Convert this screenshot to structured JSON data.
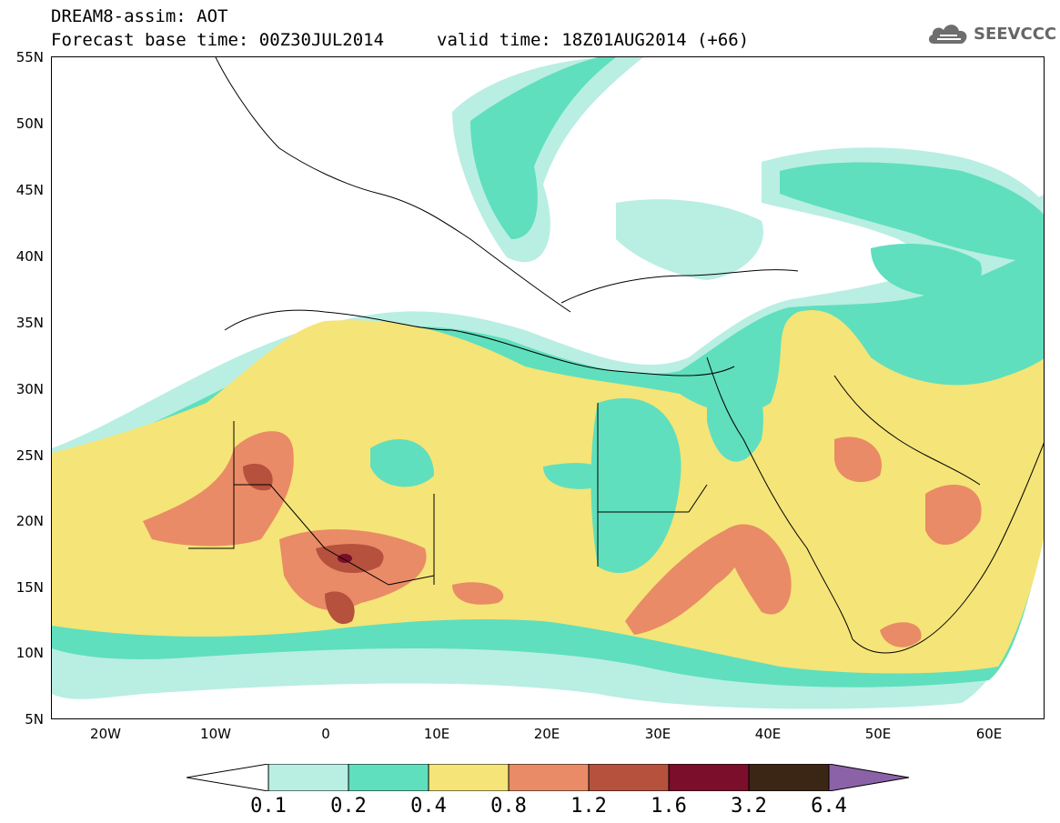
{
  "header": {
    "title": "DREAM8-assim: AOT",
    "base_time": "Forecast base time: 00Z30JUL2014",
    "valid_time": "valid time: 18Z01AUG2014 (+66)"
  },
  "logo": {
    "text": "SEEVCCC",
    "icon": "cloud-icon"
  },
  "axes": {
    "lat_labels": [
      "55N",
      "50N",
      "45N",
      "40N",
      "35N",
      "30N",
      "25N",
      "20N",
      "15N",
      "10N",
      "5N"
    ],
    "lon_labels": [
      "20W",
      "10W",
      "0",
      "10E",
      "20E",
      "30E",
      "40E",
      "50E",
      "60E"
    ],
    "lat_range": [
      5,
      55
    ],
    "lon_range": [
      -25,
      65
    ]
  },
  "colorbar": {
    "labels": [
      "0.1",
      "0.2",
      "0.4",
      "0.8",
      "1.2",
      "1.6",
      "3.2",
      "6.4"
    ],
    "colors": [
      "#ffffff",
      "#b9eee3",
      "#5fdfbd",
      "#f5e477",
      "#e98b66",
      "#b5513d",
      "#7a0e2b",
      "#3b2514",
      "#8b62a8"
    ]
  },
  "colors": {
    "level_01": "#b9eee3",
    "level_02": "#5fdfbd",
    "level_04": "#f5e477",
    "level_08": "#e98b66",
    "level_12": "#b5513d",
    "level_16": "#7a0e2b",
    "coast": "#000000"
  }
}
